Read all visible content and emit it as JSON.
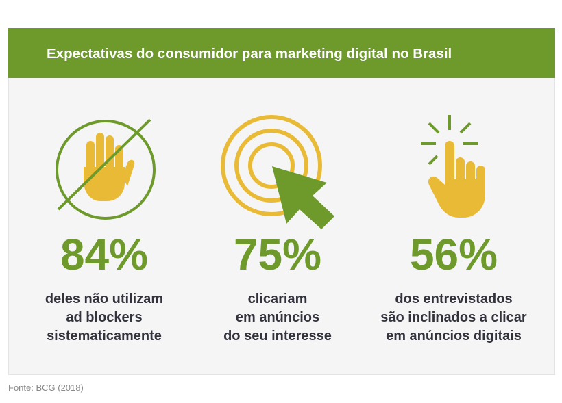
{
  "title": "Expectativas do consumidor para marketing digital no Brasil",
  "colors": {
    "green": "#6e9a2c",
    "yellow": "#e9ba35",
    "text": "#33333d",
    "background": "#f5f5f5"
  },
  "stats": [
    {
      "icon": "no-hand-icon",
      "value": "84%",
      "lines": [
        "deles não utilizam",
        "ad blockers",
        "sistematicamente"
      ]
    },
    {
      "icon": "target-cursor-icon",
      "value": "75%",
      "lines": [
        "clicariam",
        "em anúncios",
        "do seu interesse"
      ]
    },
    {
      "icon": "tap-hand-icon",
      "value": "56%",
      "lines": [
        "dos entrevistados",
        "são inclinados a clicar",
        "em anúncios digitais"
      ]
    }
  ],
  "source": "Fonte: BCG (2018)"
}
